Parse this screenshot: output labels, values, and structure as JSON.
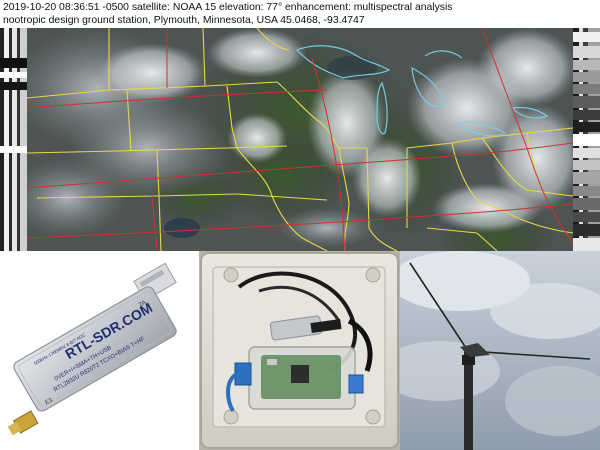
{
  "caption": {
    "line1": "2019-10-20 08:36:51 -0500  satellite: NOAA 15  elevation: 77°  enhancement: multispectral analysis",
    "line2": "nootropic design ground station, Plymouth, Minnesota, USA  45.0468, -93.4747"
  },
  "dongle": {
    "brand": "RTL-SDR.COM",
    "model_line": "RTL2832U R820T2 TCXO+BIAS T+HF",
    "spec_line": "0VER+I+SMA+TH+USB",
    "small_line": "500kHz-1766MHz 8-BIT ADC",
    "sticker": "2A",
    "serial": "E3"
  },
  "colors": {
    "sat_background": "#3d4442",
    "state_lines": "#e6d84a",
    "grid_lines": "#d03030",
    "lake_lines": "#7ad0e6",
    "dongle_body": "#c9ccd1"
  }
}
